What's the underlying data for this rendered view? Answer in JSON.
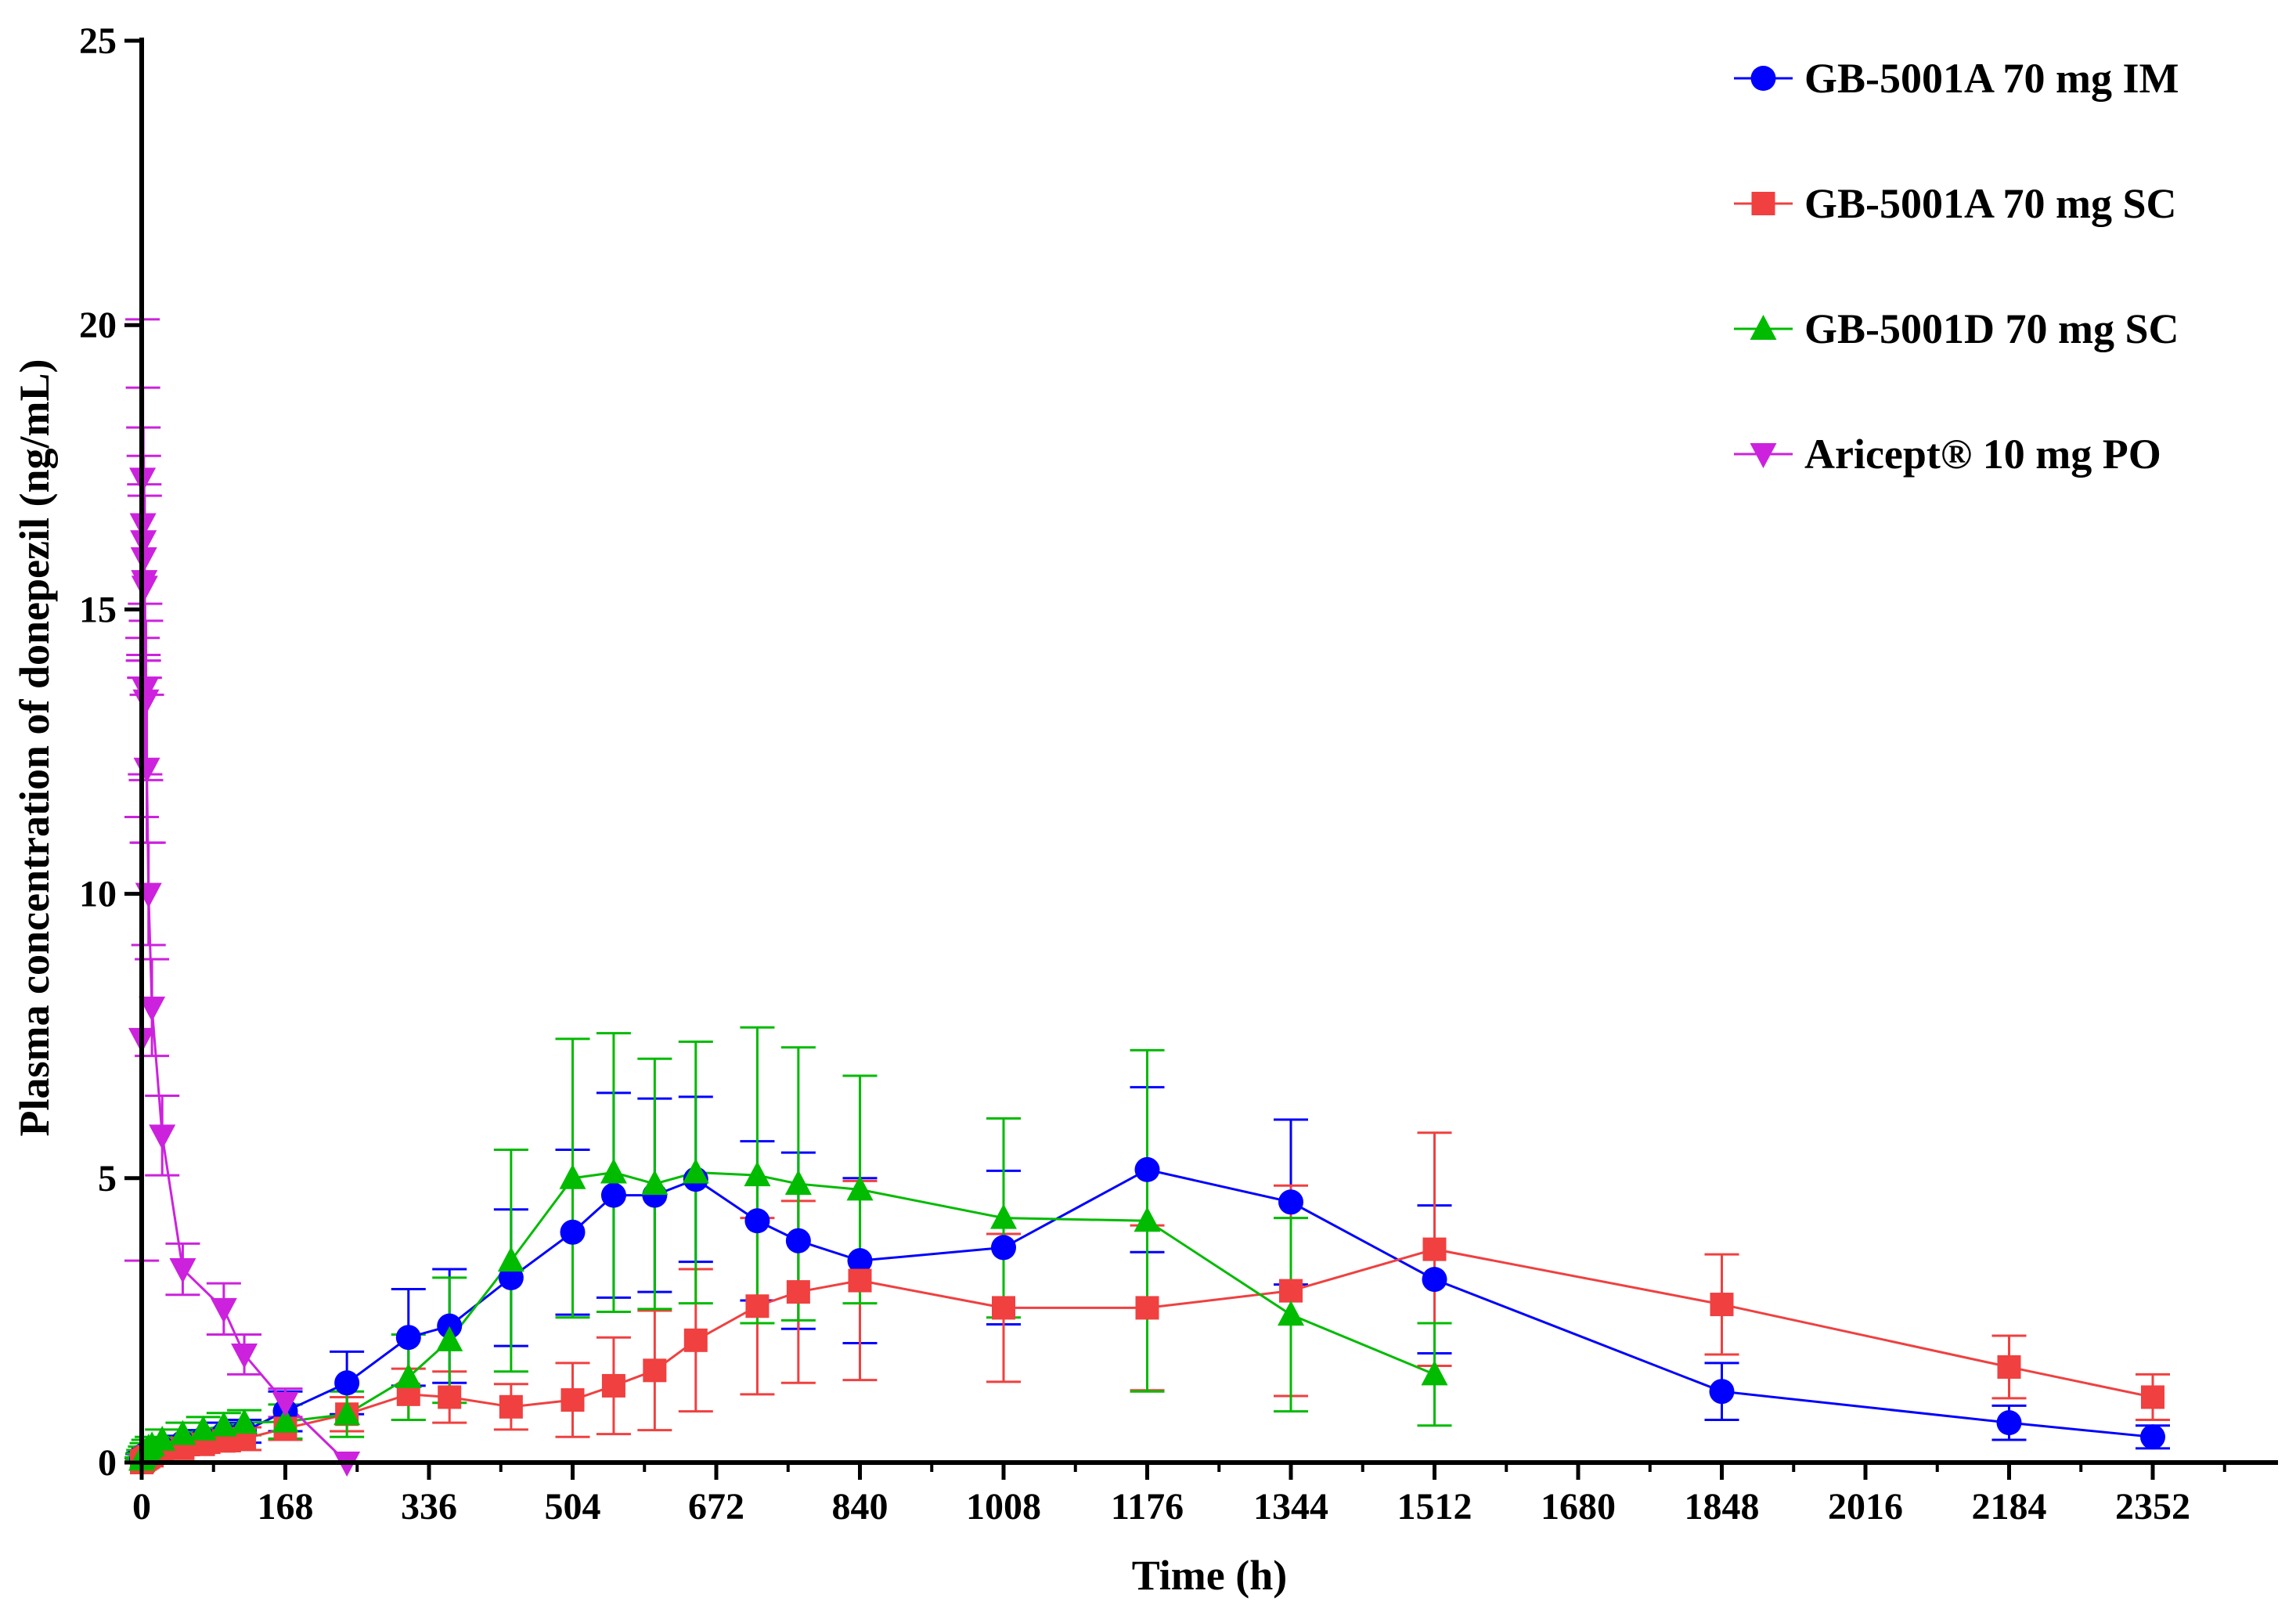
{
  "chart_data": {
    "type": "line",
    "title": "",
    "xlabel": "Time (h)",
    "ylabel": "Plasma concentration of donepezil (ng/mL)",
    "xlim": [
      0,
      2520
    ],
    "ylim": [
      0,
      25
    ],
    "xticks": [
      "0",
      "168",
      "336",
      "504",
      "672",
      "840",
      "1008",
      "1176",
      "1344",
      "1512",
      "1680",
      "1848",
      "2016",
      "2184",
      "2352"
    ],
    "yticks": [
      "0",
      "5",
      "10",
      "15",
      "20",
      "25"
    ],
    "legend_position": "top-right",
    "series": [
      {
        "name": "GB-5001A 70 mg IM",
        "color": "#0000ff",
        "marker": "circle",
        "x": [
          0,
          1,
          2,
          4,
          6,
          8,
          12,
          24,
          48,
          72,
          96,
          120,
          168,
          240,
          312,
          360,
          432,
          504,
          552,
          600,
          648,
          720,
          768,
          840,
          1008,
          1176,
          1344,
          1512,
          1848,
          2184,
          2352
        ],
        "y": [
          0.05,
          0.1,
          0.12,
          0.14,
          0.16,
          0.18,
          0.2,
          0.25,
          0.35,
          0.42,
          0.5,
          0.55,
          0.9,
          1.4,
          2.2,
          2.4,
          3.25,
          4.05,
          4.7,
          4.7,
          4.98,
          4.25,
          3.9,
          3.55,
          3.78,
          5.15,
          4.58,
          3.22,
          1.25,
          0.7,
          0.45
        ],
        "err": [
          0.03,
          0.05,
          0.05,
          0.06,
          0.06,
          0.07,
          0.08,
          0.1,
          0.12,
          0.15,
          0.2,
          0.2,
          0.35,
          0.55,
          0.85,
          1.0,
          1.2,
          1.45,
          1.8,
          1.7,
          1.45,
          1.4,
          1.55,
          1.45,
          1.35,
          1.45,
          1.45,
          1.3,
          0.5,
          0.3,
          0.2
        ]
      },
      {
        "name": "GB-5001A 70 mg SC",
        "color": "#f04040",
        "marker": "square",
        "x": [
          0,
          1,
          2,
          4,
          6,
          8,
          12,
          24,
          48,
          72,
          96,
          120,
          168,
          240,
          312,
          360,
          432,
          504,
          552,
          600,
          648,
          720,
          768,
          840,
          1008,
          1176,
          1344,
          1512,
          1848,
          2184,
          2352
        ],
        "y": [
          0.0,
          0.02,
          0.04,
          0.06,
          0.08,
          0.1,
          0.12,
          0.18,
          0.25,
          0.32,
          0.38,
          0.42,
          0.6,
          0.85,
          1.2,
          1.15,
          0.98,
          1.1,
          1.35,
          1.62,
          2.15,
          2.75,
          3.0,
          3.2,
          2.72,
          2.72,
          3.02,
          3.75,
          2.78,
          1.68,
          1.15
        ],
        "err": [
          0.02,
          0.03,
          0.03,
          0.04,
          0.05,
          0.06,
          0.08,
          0.1,
          0.12,
          0.15,
          0.18,
          0.2,
          0.2,
          0.3,
          0.45,
          0.45,
          0.4,
          0.65,
          0.85,
          1.05,
          1.25,
          1.55,
          1.6,
          1.75,
          1.3,
          1.45,
          1.85,
          2.05,
          0.88,
          0.55,
          0.4
        ]
      },
      {
        "name": "GB-5001D 70 mg SC",
        "color": "#00bb00",
        "marker": "triangle-up",
        "x": [
          0,
          1,
          2,
          4,
          6,
          8,
          12,
          24,
          48,
          72,
          96,
          120,
          168,
          240,
          312,
          360,
          432,
          504,
          552,
          600,
          648,
          720,
          768,
          840,
          1008,
          1176,
          1344,
          1512
        ],
        "y": [
          0.05,
          0.1,
          0.14,
          0.18,
          0.22,
          0.26,
          0.3,
          0.4,
          0.5,
          0.58,
          0.65,
          0.7,
          0.72,
          0.85,
          1.5,
          2.15,
          3.55,
          5.0,
          5.1,
          4.9,
          5.1,
          5.05,
          4.9,
          4.8,
          4.3,
          4.25,
          2.6,
          1.55
        ],
        "err": [
          0.04,
          0.06,
          0.08,
          0.1,
          0.12,
          0.14,
          0.15,
          0.18,
          0.2,
          0.22,
          0.22,
          0.22,
          0.3,
          0.4,
          0.75,
          1.1,
          1.95,
          2.45,
          2.45,
          2.2,
          2.3,
          2.6,
          2.4,
          2.0,
          1.75,
          3.0,
          1.7,
          0.9
        ]
      },
      {
        "name": "Aricept® 10 mg PO",
        "color": "#cc22dd",
        "marker": "triangle-down",
        "x": [
          0,
          1,
          1.5,
          2,
          2.5,
          3,
          3.5,
          4,
          5,
          6,
          8,
          12,
          24,
          48,
          96,
          120,
          168,
          240
        ],
        "y": [
          7.45,
          17.3,
          16.5,
          16.2,
          15.9,
          15.5,
          15.4,
          13.6,
          13.4,
          12.2,
          10.0,
          8.0,
          5.75,
          3.4,
          2.7,
          1.9,
          1.05,
          0.0
        ],
        "err": [
          3.9,
          2.8,
          2.4,
          2.0,
          1.8,
          1.7,
          1.6,
          1.5,
          1.4,
          1.3,
          0.9,
          0.85,
          0.7,
          0.45,
          0.45,
          0.35,
          0.25,
          0.0
        ]
      }
    ]
  }
}
